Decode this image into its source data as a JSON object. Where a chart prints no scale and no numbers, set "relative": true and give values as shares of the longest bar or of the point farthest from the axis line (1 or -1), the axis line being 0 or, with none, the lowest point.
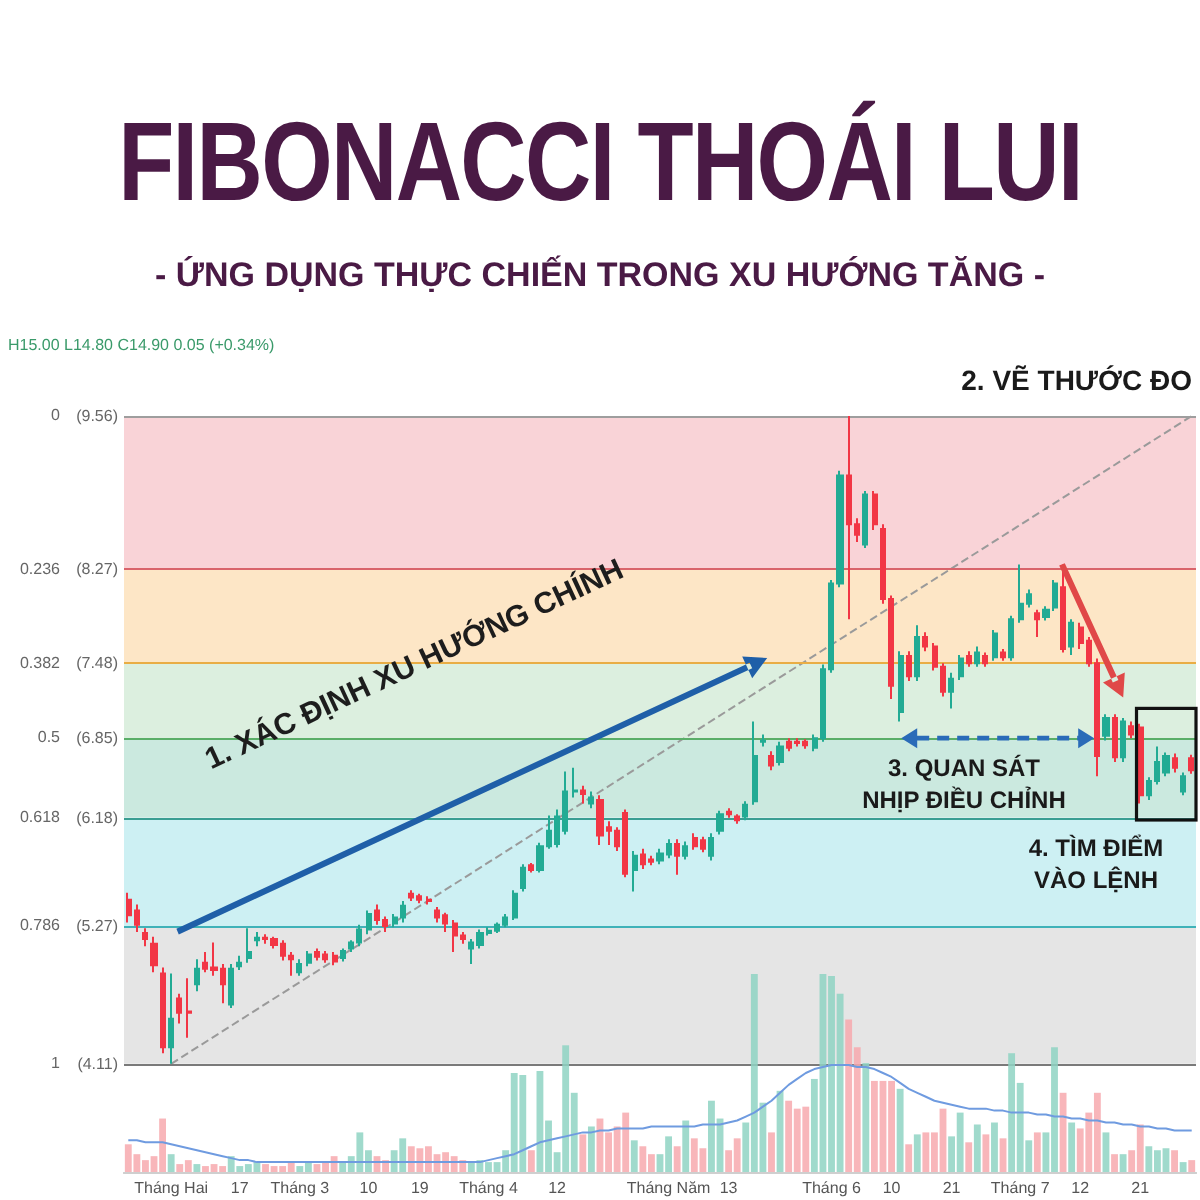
{
  "chart_data": [
    {
      "type": "candlestick",
      "title": "FIBONACCI THOÁI LUI",
      "subtitle": "- ỨNG DỤNG THỰC CHIẾN TRONG XU HƯỚNG TĂNG -",
      "annotations": [
        "H15.00 L14.80 C14.90 0.05 (+0.34%)",
        "1. XÁC ĐỊNH XU HƯỚNG CHÍNH",
        "2. VẼ THƯỚC ĐO",
        {
          "text": "3. QUAN SÁT NHỊP ĐIỀU CHỈNH",
          "y": 6.85
        },
        "4. TÌM ĐIỂM VÀO LỆNH",
        "0",
        "0.236",
        "0.382",
        "0.5",
        "0.618",
        "0.786",
        "1"
      ],
      "tick_labels": "y",
      "categories": [
        null,
        null,
        null,
        null,
        null,
        null,
        null,
        null,
        null,
        null,
        null,
        null,
        null,
        null,
        null,
        null,
        null,
        null,
        null,
        null,
        null,
        null,
        null,
        null,
        null,
        null,
        null,
        null,
        null,
        null,
        null,
        null,
        null,
        null,
        null,
        null,
        null,
        null,
        null,
        null,
        null,
        null,
        null,
        null,
        null,
        null,
        null,
        null,
        null,
        null,
        null,
        null,
        null,
        null,
        null,
        null,
        null,
        null,
        null,
        null,
        null,
        null,
        null,
        null,
        null,
        null,
        null,
        null,
        null,
        null,
        null,
        null,
        null,
        null,
        null,
        null,
        null,
        null,
        null,
        null,
        null,
        null,
        null,
        null,
        null,
        null,
        null,
        null,
        null,
        null,
        null,
        null,
        null,
        null,
        null,
        null,
        null,
        null,
        null,
        null,
        null,
        null,
        null,
        null,
        null,
        null,
        null,
        null,
        null,
        null,
        null,
        null,
        null,
        null,
        null,
        null,
        null,
        null,
        null,
        null,
        null,
        null,
        null,
        null,
        null
      ],
      "series": [
        {
          "ohlc": [
            [
              5.49,
              5.55,
              5.3,
              5.36
            ],
            [
              5.4,
              5.45,
              5.22,
              5.28
            ],
            [
              5.21,
              5.25,
              5.1,
              5.16
            ],
            [
              5.12,
              5.18,
              4.88,
              4.94
            ],
            [
              4.87,
              4.92,
              4.2,
              4.25
            ],
            [
              4.25,
              4.87,
              4.11,
              4.49
            ],
            [
              4.66,
              4.7,
              4.45,
              4.54
            ],
            [
              4.55,
              4.83,
              4.33,
              4.54
            ],
            [
              4.78,
              4.99,
              4.72,
              4.91
            ],
            [
              4.96,
              5.05,
              4.88,
              4.91
            ],
            [
              4.92,
              5.13,
              4.85,
              4.9
            ],
            [
              4.91,
              4.95,
              4.62,
              4.78
            ],
            [
              4.61,
              4.95,
              4.58,
              4.91
            ],
            [
              4.93,
              5.02,
              4.9,
              4.96
            ],
            [
              5.0,
              5.25,
              4.96,
              5.05
            ],
            [
              5.15,
              5.22,
              5.1,
              5.17
            ],
            [
              5.17,
              5.2,
              5.12,
              5.16
            ],
            [
              5.16,
              5.18,
              5.08,
              5.11
            ],
            [
              5.12,
              5.15,
              4.98,
              5.02
            ],
            [
              5.02,
              5.05,
              4.85,
              4.99
            ],
            [
              4.88,
              4.99,
              4.85,
              4.95
            ],
            [
              4.96,
              5.06,
              4.93,
              5.03
            ],
            [
              5.05,
              5.08,
              4.98,
              5.01
            ],
            [
              5.03,
              5.06,
              4.96,
              4.99
            ],
            [
              5.02,
              5.05,
              4.94,
              4.97
            ],
            [
              5.0,
              5.08,
              4.97,
              5.06
            ],
            [
              5.08,
              5.15,
              5.05,
              5.13
            ],
            [
              5.13,
              5.28,
              5.1,
              5.24
            ],
            [
              5.24,
              5.4,
              5.2,
              5.37
            ],
            [
              5.4,
              5.45,
              5.28,
              5.32
            ],
            [
              5.32,
              5.35,
              5.22,
              5.27
            ],
            [
              5.29,
              5.37,
              5.26,
              5.34
            ],
            [
              5.34,
              5.48,
              5.3,
              5.44
            ],
            [
              5.54,
              5.57,
              5.48,
              5.51
            ],
            [
              5.52,
              5.54,
              5.46,
              5.49
            ],
            [
              5.49,
              5.52,
              5.45,
              5.48
            ],
            [
              5.4,
              5.43,
              5.3,
              5.34
            ],
            [
              5.36,
              5.38,
              5.22,
              5.29
            ],
            [
              5.29,
              5.32,
              5.05,
              5.19
            ],
            [
              5.19,
              5.22,
              5.12,
              5.16
            ],
            [
              5.08,
              5.16,
              4.95,
              5.13
            ],
            [
              5.11,
              5.24,
              5.08,
              5.21
            ],
            [
              5.21,
              5.26,
              5.19,
              5.23
            ],
            [
              5.23,
              5.3,
              5.21,
              5.28
            ],
            [
              5.28,
              5.37,
              5.26,
              5.34
            ],
            [
              5.34,
              5.57,
              5.32,
              5.54
            ],
            [
              5.59,
              5.79,
              5.56,
              5.76
            ],
            [
              5.78,
              5.8,
              5.72,
              5.74
            ],
            [
              5.74,
              5.97,
              5.72,
              5.94
            ],
            [
              5.94,
              6.2,
              5.92,
              6.07
            ],
            [
              5.96,
              6.25,
              5.93,
              6.19
            ],
            [
              6.07,
              6.57,
              6.04,
              6.4
            ],
            [
              6.4,
              6.6,
              6.35,
              6.41
            ],
            [
              6.41,
              6.45,
              6.3,
              6.38
            ],
            [
              6.3,
              6.4,
              6.26,
              6.35
            ],
            [
              6.33,
              6.37,
              5.95,
              6.03
            ],
            [
              6.1,
              6.15,
              5.95,
              6.07
            ],
            [
              6.07,
              6.1,
              5.9,
              5.94
            ],
            [
              6.22,
              6.25,
              5.68,
              5.71
            ],
            [
              5.74,
              5.9,
              5.56,
              5.86
            ],
            [
              5.87,
              5.92,
              5.75,
              5.79
            ],
            [
              5.83,
              5.86,
              5.78,
              5.81
            ],
            [
              5.82,
              5.92,
              5.79,
              5.88
            ],
            [
              5.87,
              6.0,
              5.84,
              5.96
            ],
            [
              5.96,
              6.0,
              5.7,
              5.86
            ],
            [
              5.86,
              5.98,
              5.83,
              5.94
            ],
            [
              6.01,
              6.05,
              5.91,
              5.94
            ],
            [
              5.99,
              6.02,
              5.89,
              5.92
            ],
            [
              5.86,
              6.05,
              5.82,
              6.01
            ],
            [
              6.07,
              6.24,
              6.04,
              6.21
            ],
            [
              6.23,
              6.26,
              6.18,
              6.21
            ],
            [
              6.19,
              6.21,
              6.13,
              6.16
            ],
            [
              6.19,
              6.32,
              6.16,
              6.29
            ],
            [
              6.32,
              6.99,
              6.29,
              6.7
            ],
            [
              6.82,
              6.88,
              6.78,
              6.83
            ],
            [
              6.7,
              6.74,
              6.58,
              6.62
            ],
            [
              6.65,
              6.82,
              6.62,
              6.78
            ],
            [
              6.82,
              6.85,
              6.74,
              6.77
            ],
            [
              6.82,
              6.85,
              6.78,
              6.81
            ],
            [
              6.82,
              6.84,
              6.76,
              6.79
            ],
            [
              6.77,
              6.88,
              6.74,
              6.85
            ],
            [
              6.85,
              7.47,
              6.82,
              7.43
            ],
            [
              7.43,
              8.18,
              7.4,
              8.15
            ],
            [
              8.15,
              9.1,
              8.12,
              9.06
            ],
            [
              9.06,
              9.56,
              7.85,
              8.65
            ],
            [
              8.65,
              8.7,
              8.5,
              8.56
            ],
            [
              8.48,
              8.93,
              8.45,
              8.9
            ],
            [
              8.9,
              8.93,
              8.6,
              8.65
            ],
            [
              8.61,
              8.65,
              7.98,
              8.02
            ],
            [
              8.02,
              8.05,
              7.18,
              7.29
            ],
            [
              7.07,
              7.58,
              6.99,
              7.54
            ],
            [
              7.54,
              7.58,
              7.33,
              7.37
            ],
            [
              7.37,
              7.8,
              7.33,
              7.7
            ],
            [
              7.7,
              7.74,
              7.58,
              7.62
            ],
            [
              7.62,
              7.65,
              7.42,
              7.45
            ],
            [
              7.45,
              7.48,
              7.2,
              7.24
            ],
            [
              7.24,
              7.4,
              7.1,
              7.35
            ],
            [
              7.37,
              7.55,
              7.34,
              7.52
            ],
            [
              7.54,
              7.58,
              7.45,
              7.48
            ],
            [
              7.48,
              7.62,
              7.45,
              7.57
            ],
            [
              7.54,
              7.57,
              7.45,
              7.48
            ],
            [
              7.53,
              7.76,
              7.5,
              7.73
            ],
            [
              7.57,
              7.6,
              7.5,
              7.53
            ],
            [
              7.53,
              7.88,
              7.5,
              7.85
            ],
            [
              7.85,
              8.31,
              7.82,
              7.98
            ],
            [
              7.98,
              8.1,
              7.95,
              8.06
            ],
            [
              7.9,
              7.93,
              7.7,
              7.85
            ],
            [
              7.87,
              7.96,
              7.84,
              7.93
            ],
            [
              7.95,
              8.18,
              7.92,
              8.15
            ],
            [
              8.12,
              8.31,
              7.57,
              7.6
            ],
            [
              7.62,
              7.85,
              7.55,
              7.82
            ],
            [
              7.78,
              7.82,
              7.6,
              7.65
            ],
            [
              7.67,
              7.7,
              7.45,
              7.48
            ],
            [
              7.48,
              7.52,
              6.53,
              6.7
            ],
            [
              6.87,
              7.05,
              6.83,
              7.02
            ],
            [
              7.02,
              7.05,
              6.65,
              6.69
            ],
            [
              6.69,
              7.02,
              6.65,
              6.99
            ],
            [
              6.95,
              6.99,
              6.85,
              6.88
            ],
            [
              6.94,
              6.97,
              6.3,
              6.37
            ],
            [
              6.37,
              6.52,
              6.33,
              6.49
            ],
            [
              6.49,
              6.78,
              6.46,
              6.65
            ],
            [
              6.56,
              6.73,
              6.53,
              6.7
            ],
            [
              6.68,
              6.72,
              6.56,
              6.6
            ],
            [
              6.4,
              6.56,
              6.37,
              6.53
            ],
            [
              6.68,
              6.71,
              6.55,
              6.58
            ]
          ],
          "colors": [
            "#f23645",
            "#f23645",
            "#f23645",
            "#f23645",
            "#f23645",
            "#22ab94",
            "#f23645",
            "#f23645",
            "#22ab94",
            "#f23645",
            "#f23645",
            "#f23645",
            "#22ab94",
            "#22ab94",
            "#22ab94",
            "#22ab94",
            "#f23645",
            "#f23645",
            "#f23645",
            "#f23645",
            "#22ab94",
            "#22ab94",
            "#f23645",
            "#f23645",
            "#f23645",
            "#22ab94",
            "#22ab94",
            "#22ab94",
            "#22ab94",
            "#f23645",
            "#f23645",
            "#22ab94",
            "#22ab94",
            "#f23645",
            "#f23645",
            "#f23645",
            "#f23645",
            "#f23645",
            "#f23645",
            "#f23645",
            "#22ab94",
            "#22ab94",
            "#22ab94",
            "#22ab94",
            "#22ab94",
            "#22ab94",
            "#22ab94",
            "#f23645",
            "#22ab94",
            "#22ab94",
            "#22ab94",
            "#22ab94",
            "#22ab94",
            "#f23645",
            "#22ab94",
            "#f23645",
            "#f23645",
            "#f23645",
            "#f23645",
            "#22ab94",
            "#f23645",
            "#f23645",
            "#22ab94",
            "#22ab94",
            "#f23645",
            "#22ab94",
            "#f23645",
            "#f23645",
            "#22ab94",
            "#22ab94",
            "#f23645",
            "#f23645",
            "#22ab94",
            "#22ab94",
            "#22ab94",
            "#f23645",
            "#22ab94",
            "#f23645",
            "#f23645",
            "#f23645",
            "#22ab94",
            "#22ab94",
            "#22ab94",
            "#22ab94",
            "#f23645",
            "#f23645",
            "#22ab94",
            "#f23645",
            "#f23645",
            "#f23645",
            "#22ab94",
            "#f23645",
            "#22ab94",
            "#f23645",
            "#f23645",
            "#f23645",
            "#22ab94",
            "#22ab94",
            "#f23645",
            "#22ab94",
            "#f23645",
            "#22ab94",
            "#f23645",
            "#22ab94",
            "#22ab94",
            "#22ab94",
            "#f23645",
            "#22ab94",
            "#22ab94",
            "#f23645",
            "#22ab94",
            "#f23645",
            "#f23645",
            "#f23645",
            "#22ab94",
            "#f23645",
            "#22ab94",
            "#f23645",
            "#f23645",
            "#22ab94",
            "#22ab94",
            "#22ab94",
            "#f23645",
            "#22ab94",
            "#f23645"
          ]
        },
        {
          "type": "line",
          "color": "#9a9a9a",
          "line_style": "dashed",
          "values": [
            null,
            null,
            null,
            null,
            null,
            4.11,
            null,
            null,
            null,
            null,
            null,
            null,
            null,
            null,
            null,
            null,
            null,
            null,
            null,
            null,
            null,
            null,
            null,
            null,
            null,
            null,
            null,
            null,
            null,
            null,
            null,
            null,
            null,
            null,
            null,
            null,
            null,
            null,
            null,
            null,
            null,
            null,
            null,
            null,
            null,
            null,
            null,
            null,
            null,
            null,
            null,
            null,
            null,
            null,
            null,
            null,
            null,
            null,
            null,
            null,
            null,
            null,
            null,
            null,
            null,
            null,
            null,
            null,
            null,
            null,
            null,
            null,
            null,
            null,
            null,
            null,
            null,
            null,
            null,
            null,
            null,
            null,
            null,
            null,
            null,
            null,
            null,
            null,
            null,
            null,
            null,
            null,
            null,
            null,
            null,
            null,
            null,
            null,
            null,
            null,
            null,
            null,
            null,
            null,
            null,
            null,
            null,
            null,
            null,
            null,
            null,
            null,
            null,
            null,
            null,
            null,
            null,
            null,
            null,
            null,
            null,
            null,
            null,
            null,
            9.56
          ]
        }
      ],
      "ylim": [
        3.2,
        9.56
      ],
      "yticks": [
        {
          "value": 9.56,
          "label": "(9.56)"
        },
        {
          "value": 8.27,
          "label": "(8.27)"
        },
        {
          "value": 7.48,
          "label": "(7.48)"
        },
        {
          "value": 6.85,
          "label": "(6.85)"
        },
        {
          "value": 6.18,
          "label": "(6.18)"
        },
        {
          "value": 5.27,
          "label": "(5.27)"
        },
        {
          "value": 4.11,
          "label": "(4.11)"
        }
      ],
      "ref_lines": [
        {
          "axis": "y",
          "value": 9.56,
          "color": "#9e9e9e"
        },
        {
          "axis": "y",
          "value": 8.27,
          "color": "#d9646b"
        },
        {
          "axis": "y",
          "value": 7.48,
          "color": "#e9ad45"
        },
        {
          "axis": "y",
          "value": 6.85,
          "color": "#5aae68"
        },
        {
          "axis": "y",
          "value": 6.18,
          "color": "#3a9e92"
        },
        {
          "axis": "y",
          "value": 5.27,
          "color": "#3fb2b8"
        },
        {
          "axis": "y",
          "value": 4.11,
          "color": "#7a7a7a"
        }
      ],
      "bands": [
        {
          "axis": "y",
          "from": 8.27,
          "to": 9.56,
          "color": "#f9d3d7"
        },
        {
          "axis": "y",
          "from": 7.48,
          "to": 8.27,
          "color": "#fde6c6"
        },
        {
          "axis": "y",
          "from": 6.85,
          "to": 7.48,
          "color": "#dcefdf"
        },
        {
          "axis": "y",
          "from": 6.18,
          "to": 6.85,
          "color": "#cbe9df"
        },
        {
          "axis": "y",
          "from": 5.27,
          "to": 6.18,
          "color": "#cdf0f3"
        },
        {
          "axis": "y",
          "from": 4.11,
          "to": 5.27,
          "color": "#e5e5e5"
        }
      ]
    },
    {
      "type": "bar",
      "relative": true,
      "tick_labels": "x",
      "categories": [
        null,
        null,
        null,
        null,
        null,
        "Tháng Hai",
        null,
        null,
        null,
        null,
        null,
        null,
        null,
        "17",
        null,
        null,
        null,
        null,
        null,
        null,
        "Tháng 3",
        null,
        null,
        null,
        null,
        null,
        null,
        null,
        "10",
        null,
        null,
        null,
        null,
        null,
        "19",
        null,
        null,
        null,
        null,
        null,
        null,
        null,
        "Tháng 4",
        null,
        null,
        null,
        null,
        null,
        null,
        null,
        "12",
        null,
        null,
        null,
        null,
        null,
        null,
        null,
        null,
        null,
        null,
        null,
        null,
        "Tháng Năm",
        null,
        null,
        null,
        null,
        null,
        null,
        "13",
        null,
        null,
        null,
        null,
        null,
        null,
        null,
        null,
        null,
        null,
        null,
        "Tháng 6",
        null,
        null,
        null,
        null,
        null,
        null,
        "10",
        null,
        null,
        null,
        null,
        null,
        null,
        "21",
        null,
        null,
        null,
        null,
        null,
        null,
        null,
        "Tháng 7",
        null,
        null,
        null,
        null,
        null,
        null,
        "12",
        null,
        null,
        null,
        null,
        null,
        null,
        "21",
        null,
        null,
        null,
        null,
        null,
        null
      ],
      "series": [
        {
          "values": [
            0.14,
            0.09,
            0.06,
            0.08,
            0.27,
            0.09,
            0.04,
            0.06,
            0.04,
            0.03,
            0.04,
            0.03,
            0.08,
            0.03,
            0.04,
            0.05,
            0.04,
            0.03,
            0.03,
            0.05,
            0.03,
            0.05,
            0.04,
            0.05,
            0.08,
            0.05,
            0.08,
            0.2,
            0.11,
            0.08,
            0.06,
            0.11,
            0.17,
            0.13,
            0.12,
            0.13,
            0.09,
            0.1,
            0.08,
            0.06,
            0.05,
            0.06,
            0.05,
            0.05,
            0.11,
            0.5,
            0.49,
            0.11,
            0.51,
            0.26,
            0.1,
            0.64,
            0.4,
            0.19,
            0.23,
            0.27,
            0.2,
            0.23,
            0.3,
            0.16,
            0.13,
            0.09,
            0.09,
            0.18,
            0.13,
            0.26,
            0.17,
            0.12,
            0.36,
            0.27,
            0.11,
            0.17,
            0.25,
            1.0,
            0.35,
            0.2,
            0.41,
            0.36,
            0.32,
            0.33,
            0.47,
            1.0,
            0.99,
            0.9,
            0.77,
            0.63,
            0.55,
            0.46,
            0.46,
            0.46,
            0.42,
            0.14,
            0.19,
            0.2,
            0.2,
            0.32,
            0.18,
            0.3,
            0.15,
            0.24,
            0.19,
            0.25,
            0.17,
            0.6,
            0.45,
            0.16,
            0.2,
            0.2,
            0.63,
            0.4,
            0.25,
            0.22,
            0.3,
            0.4,
            0.2,
            0.09,
            0.09,
            0.11,
            0.24,
            0.13,
            0.11,
            0.12,
            0.11,
            0.05,
            0.06
          ],
          "colors": [
            "#f7a9ae",
            "#f7a9ae",
            "#f7a9ae",
            "#f7a9ae",
            "#f7a9ae",
            "#8fd3c3",
            "#f7a9ae",
            "#f7a9ae",
            "#8fd3c3",
            "#f7a9ae",
            "#f7a9ae",
            "#f7a9ae",
            "#8fd3c3",
            "#8fd3c3",
            "#8fd3c3",
            "#8fd3c3",
            "#f7a9ae",
            "#f7a9ae",
            "#f7a9ae",
            "#f7a9ae",
            "#8fd3c3",
            "#8fd3c3",
            "#f7a9ae",
            "#f7a9ae",
            "#f7a9ae",
            "#8fd3c3",
            "#8fd3c3",
            "#8fd3c3",
            "#8fd3c3",
            "#f7a9ae",
            "#f7a9ae",
            "#8fd3c3",
            "#8fd3c3",
            "#f7a9ae",
            "#f7a9ae",
            "#f7a9ae",
            "#f7a9ae",
            "#f7a9ae",
            "#f7a9ae",
            "#f7a9ae",
            "#8fd3c3",
            "#8fd3c3",
            "#8fd3c3",
            "#8fd3c3",
            "#8fd3c3",
            "#8fd3c3",
            "#8fd3c3",
            "#f7a9ae",
            "#8fd3c3",
            "#8fd3c3",
            "#8fd3c3",
            "#8fd3c3",
            "#8fd3c3",
            "#f7a9ae",
            "#8fd3c3",
            "#f7a9ae",
            "#f7a9ae",
            "#f7a9ae",
            "#f7a9ae",
            "#8fd3c3",
            "#f7a9ae",
            "#f7a9ae",
            "#8fd3c3",
            "#8fd3c3",
            "#f7a9ae",
            "#8fd3c3",
            "#f7a9ae",
            "#f7a9ae",
            "#8fd3c3",
            "#8fd3c3",
            "#f7a9ae",
            "#f7a9ae",
            "#8fd3c3",
            "#8fd3c3",
            "#8fd3c3",
            "#f7a9ae",
            "#8fd3c3",
            "#f7a9ae",
            "#f7a9ae",
            "#f7a9ae",
            "#8fd3c3",
            "#8fd3c3",
            "#8fd3c3",
            "#8fd3c3",
            "#f7a9ae",
            "#f7a9ae",
            "#8fd3c3",
            "#f7a9ae",
            "#f7a9ae",
            "#f7a9ae",
            "#8fd3c3",
            "#f7a9ae",
            "#8fd3c3",
            "#f7a9ae",
            "#f7a9ae",
            "#f7a9ae",
            "#8fd3c3",
            "#8fd3c3",
            "#f7a9ae",
            "#8fd3c3",
            "#f7a9ae",
            "#8fd3c3",
            "#f7a9ae",
            "#8fd3c3",
            "#8fd3c3",
            "#8fd3c3",
            "#f7a9ae",
            "#8fd3c3",
            "#8fd3c3",
            "#f7a9ae",
            "#8fd3c3",
            "#f7a9ae",
            "#f7a9ae",
            "#f7a9ae",
            "#8fd3c3",
            "#f7a9ae",
            "#8fd3c3",
            "#f7a9ae",
            "#f7a9ae",
            "#8fd3c3",
            "#8fd3c3",
            "#8fd3c3",
            "#f7a9ae",
            "#8fd3c3",
            "#f7a9ae"
          ]
        },
        {
          "type": "line",
          "color": "#6f9be0",
          "values": [
            0.16,
            0.16,
            0.15,
            0.15,
            0.15,
            0.14,
            0.13,
            0.12,
            0.11,
            0.1,
            0.09,
            0.08,
            0.07,
            0.06,
            0.06,
            0.05,
            0.05,
            0.05,
            0.05,
            0.05,
            0.05,
            0.05,
            0.05,
            0.05,
            0.05,
            0.05,
            0.05,
            0.05,
            0.05,
            0.05,
            0.05,
            0.05,
            0.05,
            0.05,
            0.05,
            0.05,
            0.05,
            0.05,
            0.05,
            0.05,
            0.05,
            0.05,
            0.06,
            0.07,
            0.08,
            0.09,
            0.11,
            0.13,
            0.15,
            0.16,
            0.17,
            0.18,
            0.19,
            0.2,
            0.2,
            0.21,
            0.21,
            0.22,
            0.22,
            0.22,
            0.22,
            0.23,
            0.23,
            0.23,
            0.23,
            0.23,
            0.23,
            0.24,
            0.24,
            0.24,
            0.25,
            0.26,
            0.28,
            0.3,
            0.33,
            0.36,
            0.4,
            0.44,
            0.47,
            0.5,
            0.52,
            0.53,
            0.54,
            0.54,
            0.54,
            0.53,
            0.53,
            0.52,
            0.5,
            0.48,
            0.45,
            0.42,
            0.4,
            0.38,
            0.36,
            0.35,
            0.34,
            0.33,
            0.32,
            0.32,
            0.32,
            0.31,
            0.31,
            0.3,
            0.3,
            0.3,
            0.29,
            0.29,
            0.28,
            0.28,
            0.27,
            0.27,
            0.26,
            0.26,
            0.25,
            0.25,
            0.24,
            0.24,
            0.23,
            0.23,
            0.22,
            0.22,
            0.21,
            0.21,
            0.21
          ]
        }
      ]
    }
  ]
}
